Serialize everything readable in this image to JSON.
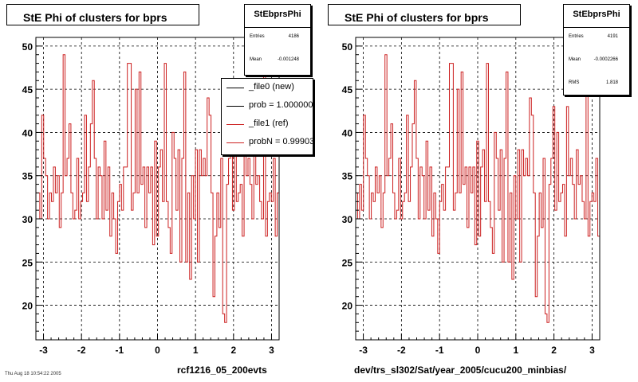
{
  "charts": [
    {
      "title": "StE Phi of clusters for bprs",
      "xcaption": "rcf1216_05_200evts",
      "stats": {
        "name": "StEbprsPhi",
        "rows": [
          {
            "label": "Entries",
            "value": "4186"
          },
          {
            "label": "Mean",
            "value": "-0.001248"
          }
        ]
      },
      "legend": [
        {
          "text": "_file0 (new)",
          "color": "#000000"
        },
        {
          "text": "prob = 1.000000",
          "color": "#000000"
        },
        {
          "text": "_file1 (ref)",
          "color": "#cc2020"
        },
        {
          "text": "probN = 0.999032",
          "color": "#cc2020"
        }
      ]
    },
    {
      "title": "StE Phi of clusters for bprs",
      "xcaption": "dev/trs_sl302/Sat/year_2005/cucu200_minbias/",
      "stats": {
        "name": "StEbprsPhi",
        "rows": [
          {
            "label": "Entries",
            "value": "4191"
          },
          {
            "label": "Mean",
            "value": "-0.0002266"
          },
          {
            "label": "RMS",
            "value": "1.818"
          }
        ]
      }
    }
  ],
  "footer": "Thu Aug 18 10:54:22 2005",
  "line_color": "#cc2020",
  "chart_data": [
    {
      "type": "line",
      "title": "StE Phi of clusters for bprs",
      "xlabel": "rcf1216_05_200evts",
      "ylabel": "",
      "xlim": [
        -3.2,
        3.2
      ],
      "ylim": [
        16,
        51
      ],
      "xticks": [
        "-3",
        "-2",
        "-1",
        "0",
        "1",
        "2",
        "3"
      ],
      "yticks": [
        "20",
        "25",
        "30",
        "35",
        "40",
        "45",
        "50"
      ],
      "grid": true,
      "legend_position": "top-right",
      "series": [
        {
          "name": "_file1 (ref)",
          "color": "#cc2020",
          "values": [
            33,
            33,
            30,
            42,
            37,
            35,
            30,
            33,
            32,
            36,
            33,
            35,
            29,
            33,
            49,
            35,
            37,
            41,
            33,
            30,
            31,
            37,
            30,
            32,
            33,
            42,
            32,
            36,
            41,
            46,
            37,
            30,
            36,
            35,
            30,
            39,
            31,
            36,
            28,
            33,
            30,
            26,
            32,
            34,
            31,
            36,
            36,
            48,
            48,
            31,
            33,
            45,
            33,
            47,
            34,
            36,
            29,
            36,
            33,
            36,
            27,
            39,
            28,
            36,
            38,
            32,
            48,
            32,
            29,
            26,
            40,
            37,
            31,
            38,
            25,
            37,
            47,
            25,
            33,
            23,
            35,
            30,
            38,
            25,
            38,
            35,
            37,
            35,
            44,
            42,
            33,
            21,
            28,
            33,
            29,
            37,
            19,
            18,
            34,
            37,
            43,
            31,
            40,
            32,
            33,
            34,
            28,
            43,
            35,
            37,
            34,
            30,
            38,
            34,
            35,
            32,
            30,
            47,
            28,
            32,
            33,
            32,
            37,
            28,
            33
          ]
        }
      ]
    },
    {
      "type": "line",
      "title": "StE Phi of clusters for bprs",
      "xlabel": "dev/trs_sl302/Sat/year_2005/cucu200_minbias/",
      "ylabel": "",
      "xlim": [
        -3.2,
        3.2
      ],
      "ylim": [
        16,
        51
      ],
      "xticks": [
        "-3",
        "-2",
        "-1",
        "0",
        "1",
        "2",
        "3"
      ],
      "yticks": [
        "20",
        "25",
        "30",
        "35",
        "40",
        "45",
        "50"
      ],
      "grid": true,
      "series": [
        {
          "name": "",
          "color": "#cc2020",
          "values": [
            33,
            30,
            34,
            31,
            42,
            37,
            35,
            30,
            33,
            32,
            36,
            33,
            35,
            29,
            33,
            49,
            35,
            37,
            41,
            33,
            30,
            31,
            37,
            30,
            32,
            33,
            42,
            32,
            36,
            41,
            46,
            37,
            30,
            36,
            35,
            30,
            39,
            31,
            36,
            28,
            33,
            30,
            26,
            32,
            34,
            31,
            36,
            36,
            48,
            48,
            31,
            33,
            45,
            33,
            47,
            34,
            36,
            29,
            36,
            33,
            36,
            27,
            39,
            28,
            36,
            38,
            32,
            48,
            32,
            29,
            26,
            40,
            37,
            31,
            38,
            25,
            37,
            47,
            25,
            33,
            23,
            35,
            30,
            38,
            25,
            38,
            35,
            37,
            35,
            44,
            42,
            33,
            21,
            28,
            33,
            29,
            37,
            19,
            18,
            34,
            37,
            43,
            31,
            40,
            32,
            33,
            34,
            28,
            43,
            35,
            37,
            34,
            30,
            38,
            34,
            35,
            32,
            30,
            47,
            28,
            32,
            33,
            32,
            37,
            28
          ]
        }
      ]
    }
  ]
}
